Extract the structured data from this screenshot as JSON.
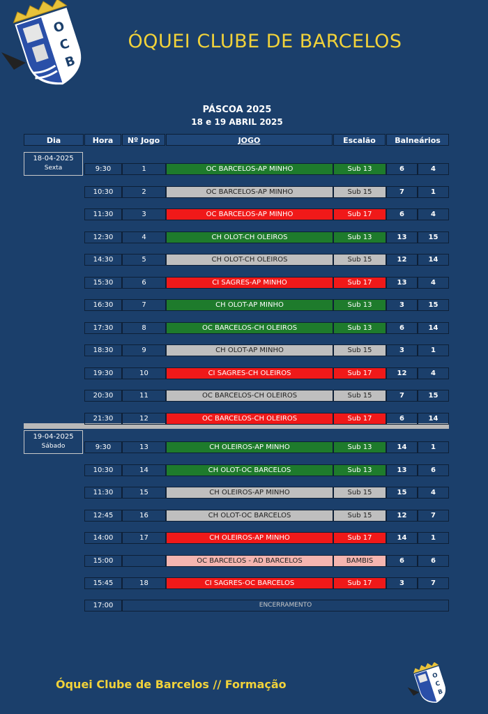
{
  "header": {
    "club_name": "ÓQUEI CLUBE DE BARCELOS",
    "event": "PÁSCOA 2025",
    "dates": "18 e 19 ABRIL 2025"
  },
  "columns": {
    "dia": "Dia",
    "hora": "Hora",
    "jogo_num": "Nº Jogo",
    "jogo": "JOGO",
    "escalao": "Escalão",
    "balnearios": "Balneários"
  },
  "days": [
    {
      "date": "18-04-2025",
      "weekday": "Sexta"
    },
    {
      "date": "19-04-2025",
      "weekday": "Sábado"
    }
  ],
  "games": [
    {
      "hora": "9:30",
      "num": "1",
      "jogo": "OC BARCELOS-AP MINHO",
      "escalao": "Sub 13",
      "b1": "6",
      "b2": "4",
      "color": "green"
    },
    {
      "hora": "10:30",
      "num": "2",
      "jogo": "OC BARCELOS-AP MINHO",
      "escalao": "Sub 15",
      "b1": "7",
      "b2": "1",
      "color": "silver"
    },
    {
      "hora": "11:30",
      "num": "3",
      "jogo": "OC BARCELOS-AP MINHO",
      "escalao": "Sub 17",
      "b1": "6",
      "b2": "4",
      "color": "red"
    },
    {
      "hora": "12:30",
      "num": "4",
      "jogo": "CH OLOT-CH OLEIROS",
      "escalao": "Sub 13",
      "b1": "13",
      "b2": "15",
      "color": "green"
    },
    {
      "hora": "14:30",
      "num": "5",
      "jogo": "CH OLOT-CH OLEIROS",
      "escalao": "Sub 15",
      "b1": "12",
      "b2": "14",
      "color": "silver"
    },
    {
      "hora": "15:30",
      "num": "6",
      "jogo": "CI SAGRES-AP MINHO",
      "escalao": "Sub 17",
      "b1": "13",
      "b2": "4",
      "color": "red"
    },
    {
      "hora": "16:30",
      "num": "7",
      "jogo": "CH OLOT-AP MINHO",
      "escalao": "Sub 13",
      "b1": "3",
      "b2": "15",
      "color": "green"
    },
    {
      "hora": "17:30",
      "num": "8",
      "jogo": "OC BARCELOS-CH OLEIROS",
      "escalao": "Sub 13",
      "b1": "6",
      "b2": "14",
      "color": "green"
    },
    {
      "hora": "18:30",
      "num": "9",
      "jogo": "CH OLOT-AP MINHO",
      "escalao": "Sub 15",
      "b1": "3",
      "b2": "1",
      "color": "silver"
    },
    {
      "hora": "19:30",
      "num": "10",
      "jogo": "CI SAGRES-CH OLEIROS",
      "escalao": "Sub 17",
      "b1": "12",
      "b2": "4",
      "color": "red"
    },
    {
      "hora": "20:30",
      "num": "11",
      "jogo": "OC BARCELOS-CH OLEIROS",
      "escalao": "Sub 15",
      "b1": "7",
      "b2": "15",
      "color": "silver"
    },
    {
      "hora": "21:30",
      "num": "12",
      "jogo": "OC BARCELOS-CH OLEIROS",
      "escalao": "Sub 17",
      "b1": "6",
      "b2": "14",
      "color": "red"
    },
    {
      "hora": "9:30",
      "num": "13",
      "jogo": "CH OLEIROS-AP MINHO",
      "escalao": "Sub 13",
      "b1": "14",
      "b2": "1",
      "color": "green"
    },
    {
      "hora": "10:30",
      "num": "14",
      "jogo": "CH OLOT-OC BARCELOS",
      "escalao": "Sub 13",
      "b1": "13",
      "b2": "6",
      "color": "green"
    },
    {
      "hora": "11:30",
      "num": "15",
      "jogo": "CH OLEIROS-AP MINHO",
      "escalao": "Sub 15",
      "b1": "15",
      "b2": "4",
      "color": "silver"
    },
    {
      "hora": "12:45",
      "num": "16",
      "jogo": "CH OLOT-OC BARCELOS",
      "escalao": "Sub 15",
      "b1": "12",
      "b2": "7",
      "color": "silver"
    },
    {
      "hora": "14:00",
      "num": "17",
      "jogo": "CH OLEIROS-AP MINHO",
      "escalao": "Sub 17",
      "b1": "14",
      "b2": "1",
      "color": "red"
    },
    {
      "hora": "15:00",
      "num": "",
      "jogo": "OC BARCELOS - AD BARCELOS",
      "escalao": "BAMBIS",
      "b1": "6",
      "b2": "6",
      "color": "pink"
    },
    {
      "hora": "15:45",
      "num": "18",
      "jogo": "CI SAGRES-OC BARCELOS",
      "escalao": "Sub 17",
      "b1": "3",
      "b2": "7",
      "color": "red"
    }
  ],
  "closing": {
    "hora": "17:00",
    "label": "ENCERRAMENTO"
  },
  "footer": {
    "text": "Óquei Clube de Barcelos // Formação"
  },
  "logo": {
    "letters": [
      "O",
      "C",
      "B"
    ]
  }
}
